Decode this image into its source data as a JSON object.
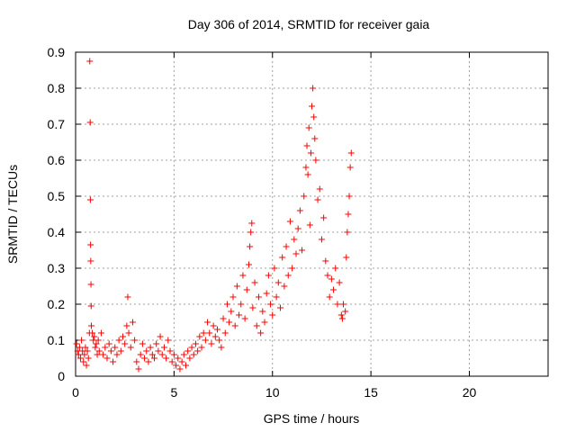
{
  "chart_data": {
    "type": "scatter",
    "title": "Day 306 of 2014, SRMTID for receiver gaia",
    "xlabel": "GPS time / hours",
    "ylabel": "SRMTID / TECUs",
    "xlim": [
      0,
      24
    ],
    "ylim": [
      0,
      0.9
    ],
    "xticks": [
      0,
      5,
      10,
      15,
      20
    ],
    "xtick_labels": [
      "0",
      "5",
      "10",
      "15",
      "20"
    ],
    "yticks": [
      0,
      0.1,
      0.2,
      0.3,
      0.4,
      0.5,
      0.6,
      0.7,
      0.8,
      0.9
    ],
    "ytick_labels": [
      "0",
      "0.1",
      "0.2",
      "0.3",
      "0.4",
      "0.5",
      "0.6",
      "0.7",
      "0.8",
      "0.9"
    ],
    "grid": true,
    "marker": "+",
    "color": "#ff0000",
    "series": [
      {
        "name": "SRMTID",
        "points": [
          [
            0.05,
            0.09
          ],
          [
            0.1,
            0.07
          ],
          [
            0.15,
            0.06
          ],
          [
            0.2,
            0.08
          ],
          [
            0.25,
            0.05
          ],
          [
            0.3,
            0.1
          ],
          [
            0.35,
            0.07
          ],
          [
            0.4,
            0.04
          ],
          [
            0.45,
            0.06
          ],
          [
            0.5,
            0.08
          ],
          [
            0.55,
            0.03
          ],
          [
            0.6,
            0.07
          ],
          [
            0.65,
            0.05
          ],
          [
            0.7,
            0.12
          ],
          [
            0.72,
            0.875
          ],
          [
            0.74,
            0.705
          ],
          [
            0.75,
            0.49
          ],
          [
            0.76,
            0.365
          ],
          [
            0.77,
            0.32
          ],
          [
            0.78,
            0.255
          ],
          [
            0.79,
            0.195
          ],
          [
            0.8,
            0.14
          ],
          [
            0.85,
            0.12
          ],
          [
            0.9,
            0.1
          ],
          [
            0.95,
            0.11
          ],
          [
            1.0,
            0.08
          ],
          [
            1.05,
            0.09
          ],
          [
            1.1,
            0.06
          ],
          [
            1.15,
            0.1
          ],
          [
            1.2,
            0.07
          ],
          [
            1.3,
            0.12
          ],
          [
            1.4,
            0.06
          ],
          [
            1.5,
            0.08
          ],
          [
            1.6,
            0.05
          ],
          [
            1.7,
            0.09
          ],
          [
            1.8,
            0.07
          ],
          [
            1.9,
            0.04
          ],
          [
            2.0,
            0.08
          ],
          [
            2.1,
            0.06
          ],
          [
            2.2,
            0.1
          ],
          [
            2.3,
            0.07
          ],
          [
            2.4,
            0.11
          ],
          [
            2.5,
            0.09
          ],
          [
            2.6,
            0.14
          ],
          [
            2.65,
            0.22
          ],
          [
            2.7,
            0.12
          ],
          [
            2.8,
            0.08
          ],
          [
            2.9,
            0.15
          ],
          [
            3.0,
            0.1
          ],
          [
            3.1,
            0.04
          ],
          [
            3.2,
            0.02
          ],
          [
            3.3,
            0.06
          ],
          [
            3.4,
            0.09
          ],
          [
            3.5,
            0.05
          ],
          [
            3.6,
            0.07
          ],
          [
            3.7,
            0.04
          ],
          [
            3.8,
            0.08
          ],
          [
            3.9,
            0.06
          ],
          [
            4.0,
            0.05
          ],
          [
            4.1,
            0.09
          ],
          [
            4.2,
            0.07
          ],
          [
            4.3,
            0.11
          ],
          [
            4.4,
            0.06
          ],
          [
            4.5,
            0.08
          ],
          [
            4.6,
            0.05
          ],
          [
            4.7,
            0.1
          ],
          [
            4.8,
            0.07
          ],
          [
            4.9,
            0.04
          ],
          [
            5.0,
            0.06
          ],
          [
            5.1,
            0.03
          ],
          [
            5.2,
            0.05
          ],
          [
            5.3,
            0.02
          ],
          [
            5.4,
            0.04
          ],
          [
            5.5,
            0.06
          ],
          [
            5.6,
            0.03
          ],
          [
            5.7,
            0.07
          ],
          [
            5.8,
            0.05
          ],
          [
            5.9,
            0.08
          ],
          [
            6.0,
            0.06
          ],
          [
            6.1,
            0.09
          ],
          [
            6.2,
            0.07
          ],
          [
            6.3,
            0.11
          ],
          [
            6.4,
            0.08
          ],
          [
            6.5,
            0.12
          ],
          [
            6.6,
            0.1
          ],
          [
            6.7,
            0.15
          ],
          [
            6.8,
            0.12
          ],
          [
            6.9,
            0.09
          ],
          [
            7.0,
            0.14
          ],
          [
            7.1,
            0.11
          ],
          [
            7.2,
            0.13
          ],
          [
            7.3,
            0.1
          ],
          [
            7.4,
            0.08
          ],
          [
            7.5,
            0.16
          ],
          [
            7.6,
            0.12
          ],
          [
            7.7,
            0.2
          ],
          [
            7.8,
            0.15
          ],
          [
            7.9,
            0.18
          ],
          [
            8.0,
            0.22
          ],
          [
            8.1,
            0.14
          ],
          [
            8.2,
            0.25
          ],
          [
            8.3,
            0.17
          ],
          [
            8.4,
            0.2
          ],
          [
            8.5,
            0.28
          ],
          [
            8.6,
            0.16
          ],
          [
            8.7,
            0.24
          ],
          [
            8.8,
            0.31
          ],
          [
            8.85,
            0.36
          ],
          [
            8.9,
            0.4
          ],
          [
            8.95,
            0.425
          ],
          [
            9.0,
            0.19
          ],
          [
            9.1,
            0.26
          ],
          [
            9.2,
            0.14
          ],
          [
            9.3,
            0.22
          ],
          [
            9.4,
            0.12
          ],
          [
            9.5,
            0.18
          ],
          [
            9.6,
            0.15
          ],
          [
            9.7,
            0.23
          ],
          [
            9.8,
            0.28
          ],
          [
            9.9,
            0.2
          ],
          [
            10.0,
            0.17
          ],
          [
            10.1,
            0.3
          ],
          [
            10.2,
            0.22
          ],
          [
            10.3,
            0.26
          ],
          [
            10.4,
            0.19
          ],
          [
            10.5,
            0.33
          ],
          [
            10.6,
            0.25
          ],
          [
            10.7,
            0.36
          ],
          [
            10.8,
            0.28
          ],
          [
            10.9,
            0.43
          ],
          [
            11.0,
            0.3
          ],
          [
            11.1,
            0.38
          ],
          [
            11.2,
            0.34
          ],
          [
            11.3,
            0.41
          ],
          [
            11.4,
            0.46
          ],
          [
            11.5,
            0.35
          ],
          [
            11.6,
            0.5
          ],
          [
            11.7,
            0.58
          ],
          [
            11.75,
            0.64
          ],
          [
            11.8,
            0.56
          ],
          [
            11.85,
            0.69
          ],
          [
            11.9,
            0.42
          ],
          [
            11.95,
            0.62
          ],
          [
            12.0,
            0.75
          ],
          [
            12.05,
            0.8
          ],
          [
            12.1,
            0.72
          ],
          [
            12.15,
            0.66
          ],
          [
            12.2,
            0.6
          ],
          [
            12.3,
            0.49
          ],
          [
            12.4,
            0.52
          ],
          [
            12.5,
            0.38
          ],
          [
            12.6,
            0.44
          ],
          [
            12.7,
            0.32
          ],
          [
            12.8,
            0.28
          ],
          [
            12.9,
            0.22
          ],
          [
            13.0,
            0.27
          ],
          [
            13.1,
            0.24
          ],
          [
            13.2,
            0.3
          ],
          [
            13.3,
            0.2
          ],
          [
            13.4,
            0.26
          ],
          [
            13.5,
            0.17
          ],
          [
            13.55,
            0.16
          ],
          [
            13.6,
            0.2
          ],
          [
            13.7,
            0.18
          ],
          [
            13.75,
            0.33
          ],
          [
            13.8,
            0.4
          ],
          [
            13.85,
            0.45
          ],
          [
            13.9,
            0.5
          ],
          [
            13.95,
            0.58
          ],
          [
            14.0,
            0.62
          ]
        ]
      }
    ]
  }
}
